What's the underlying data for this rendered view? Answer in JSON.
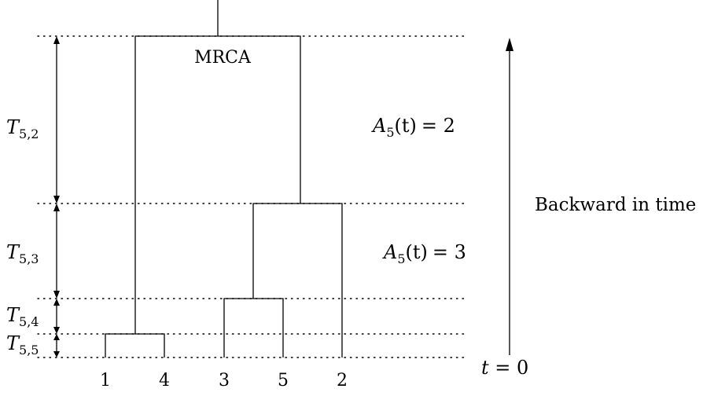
{
  "diagram": {
    "mrca_label": "MRCA",
    "leaves": [
      "1",
      "4",
      "3",
      "5",
      "2"
    ],
    "intervals": [
      {
        "symbol": "T",
        "sub": "5,2",
        "lineage_count_label": {
          "lhs_var": "A",
          "lhs_sub": "5",
          "lhs_arg": "(t)",
          "rhs": "= 2"
        }
      },
      {
        "symbol": "T",
        "sub": "5,3",
        "lineage_count_label": {
          "lhs_var": "A",
          "lhs_sub": "5",
          "lhs_arg": "(t)",
          "rhs": "= 3"
        }
      },
      {
        "symbol": "T",
        "sub": "5,4"
      },
      {
        "symbol": "T",
        "sub": "5,5"
      }
    ],
    "time_axis": {
      "label": "Backward in time",
      "origin_var": "t",
      "origin_rhs": " = 0"
    }
  }
}
